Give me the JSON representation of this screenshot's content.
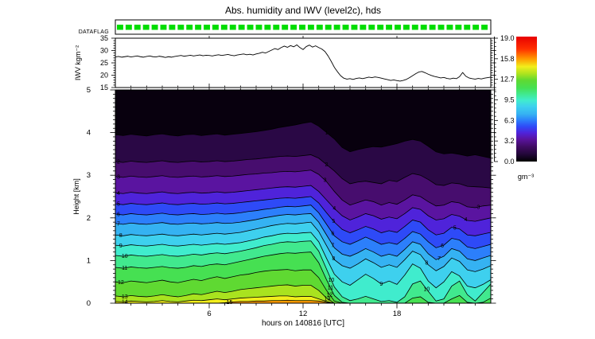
{
  "title": "Abs. humidity and IWV (level2c), hds",
  "dataflag": {
    "label": "DATAFLAG",
    "flag_count": 43,
    "flag_color": "#00dd00",
    "flags_all_green": true
  },
  "xaxis": {
    "label": "hours on 140816 [UTC]",
    "range": [
      0,
      24
    ],
    "major_ticks": [
      6,
      12,
      18
    ]
  },
  "colorbar": {
    "unit": "gm⁻³",
    "range": [
      0,
      19
    ],
    "tick_labels": [
      "19.0",
      "15.8",
      "12.7",
      "9.5",
      "6.3",
      "3.2",
      "0.0"
    ],
    "gradient": [
      [
        0,
        "#000000"
      ],
      [
        0.06,
        "#23073a"
      ],
      [
        0.12,
        "#400c64"
      ],
      [
        0.18,
        "#5a14a0"
      ],
      [
        0.23,
        "#4f23da"
      ],
      [
        0.28,
        "#2e4af7"
      ],
      [
        0.33,
        "#2c7ffb"
      ],
      [
        0.38,
        "#35b2f2"
      ],
      [
        0.44,
        "#3ed0ee"
      ],
      [
        0.49,
        "#40eccd"
      ],
      [
        0.54,
        "#41e98e"
      ],
      [
        0.59,
        "#46e052"
      ],
      [
        0.65,
        "#5fd932"
      ],
      [
        0.7,
        "#a9e31f"
      ],
      [
        0.76,
        "#f2ee1c"
      ],
      [
        0.82,
        "#ff9c00"
      ],
      [
        0.9,
        "#ff3000"
      ],
      [
        1,
        "#e80000"
      ]
    ]
  },
  "chart_data": [
    {
      "type": "line",
      "name": "IWV time series",
      "ylabel": "IWV kgm⁻²",
      "ylim": [
        15,
        35
      ],
      "xlim": [
        0,
        24
      ],
      "y_major_ticks": [
        15,
        20,
        25,
        30,
        35
      ],
      "y_minor_step": 1,
      "t0": 0,
      "dt": 0.2,
      "values": [
        27.4,
        27.6,
        27.3,
        27.5,
        27.7,
        27.4,
        27.6,
        27.8,
        27.5,
        27.3,
        27.6,
        27.8,
        27.5,
        27.4,
        27.7,
        27.5,
        27.2,
        27.5,
        27.3,
        27.6,
        27.8,
        28.0,
        27.7,
        27.9,
        28.1,
        27.8,
        28.0,
        28.2,
        27.9,
        28.1,
        28.0,
        27.8,
        28.1,
        28.3,
        28.0,
        28.2,
        28.4,
        28.1,
        27.9,
        28.2,
        28.4,
        28.6,
        28.3,
        28.5,
        28.2,
        28.6,
        28.9,
        29.3,
        29.0,
        29.6,
        30.2,
        30.8,
        30.4,
        31.2,
        31.8,
        31.3,
        32.0,
        31.5,
        32.3,
        31.2,
        30.4,
        31.6,
        32.2,
        31.4,
        31.9,
        31.2,
        30.6,
        29.6,
        27.8,
        25.6,
        23.2,
        21.4,
        19.8,
        18.8,
        18.4,
        18.6,
        18.3,
        18.7,
        18.9,
        18.6,
        18.9,
        19.2,
        19.0,
        19.3,
        19.1,
        18.8,
        18.5,
        18.2,
        17.9,
        18.1,
        17.8,
        17.6,
        17.9,
        18.3,
        19.0,
        19.8,
        20.6,
        21.3,
        21.5,
        21.0,
        20.4,
        19.9,
        19.5,
        19.2,
        18.9,
        19.1,
        18.7,
        18.5,
        18.8,
        18.6,
        19.4,
        21.1,
        19.6,
        18.9,
        18.6,
        18.4,
        18.7,
        18.5,
        18.8,
        19.0,
        19.2
      ]
    },
    {
      "type": "contour",
      "name": "Absolute humidity (g/m3) vs height and time",
      "ylabel": "Height [km]",
      "ylim": [
        0,
        5
      ],
      "xlim": [
        0,
        24
      ],
      "y_major_ticks": [
        0,
        1,
        2,
        3,
        4,
        5
      ],
      "y_minor_step": 0.1,
      "t0": 0,
      "dt": 0.5,
      "band_colors": [
        "#08000e",
        "#2a0845",
        "#470d6e",
        "#5a14a0",
        "#4f23da",
        "#2e4af7",
        "#2c7ffb",
        "#35b2f2",
        "#3ed0ee",
        "#40eccd",
        "#41e98e",
        "#46e052",
        "#5fd932",
        "#a9e31f",
        "#f2ee1c",
        "#ff9c00"
      ],
      "levels": [
        {
          "value": 1,
          "heights": [
            3.95,
            3.93,
            3.96,
            3.94,
            3.92,
            3.95,
            3.97,
            3.94,
            3.92,
            3.95,
            3.96,
            3.93,
            3.95,
            3.97,
            3.94,
            3.96,
            3.98,
            4.0,
            4.02,
            4.05,
            4.08,
            4.12,
            4.15,
            4.18,
            4.22,
            4.25,
            4.15,
            4.0,
            3.85,
            3.65,
            3.55,
            3.6,
            3.64,
            3.67,
            3.66,
            3.7,
            3.74,
            3.8,
            3.84,
            3.8,
            3.68,
            3.55,
            3.5,
            3.52,
            3.49,
            3.45,
            3.48,
            3.44,
            3.4
          ]
        },
        {
          "value": 2,
          "heights": [
            3.32,
            3.3,
            3.33,
            3.31,
            3.3,
            3.32,
            3.34,
            3.31,
            3.3,
            3.32,
            3.33,
            3.31,
            3.32,
            3.34,
            3.32,
            3.33,
            3.35,
            3.37,
            3.38,
            3.4,
            3.42,
            3.44,
            3.45,
            3.44,
            3.46,
            3.48,
            3.4,
            3.25,
            3.1,
            2.92,
            2.8,
            2.84,
            2.86,
            2.83,
            2.8,
            2.88,
            2.85,
            2.95,
            3.04,
            3.0,
            2.9,
            2.78,
            2.76,
            2.82,
            2.8,
            2.74,
            2.73,
            2.72,
            2.7
          ]
        },
        {
          "value": 3,
          "heights": [
            2.97,
            2.95,
            2.98,
            2.96,
            2.95,
            2.97,
            2.99,
            2.96,
            2.95,
            2.97,
            2.98,
            2.96,
            2.97,
            2.99,
            2.97,
            2.98,
            3.0,
            3.02,
            3.03,
            3.05,
            3.06,
            3.08,
            3.09,
            3.08,
            3.1,
            3.12,
            3.02,
            2.85,
            2.62,
            2.42,
            2.3,
            2.36,
            2.42,
            2.38,
            2.3,
            2.36,
            2.32,
            2.42,
            2.54,
            2.5,
            2.38,
            2.28,
            2.3,
            2.38,
            2.35,
            2.26,
            2.24,
            2.28,
            2.3
          ]
        },
        {
          "value": 4,
          "heights": [
            2.59,
            2.57,
            2.6,
            2.58,
            2.57,
            2.59,
            2.61,
            2.58,
            2.57,
            2.59,
            2.6,
            2.58,
            2.59,
            2.61,
            2.59,
            2.6,
            2.62,
            2.64,
            2.66,
            2.68,
            2.7,
            2.72,
            2.73,
            2.72,
            2.74,
            2.76,
            2.62,
            2.42,
            2.22,
            2.05,
            1.95,
            2.02,
            2.1,
            2.05,
            1.97,
            2.02,
            1.98,
            2.1,
            2.24,
            2.2,
            2.05,
            1.95,
            1.98,
            2.08,
            2.04,
            1.94,
            1.92,
            1.96,
            2.0
          ]
        },
        {
          "value": 5,
          "heights": [
            2.33,
            2.31,
            2.34,
            2.32,
            2.31,
            2.33,
            2.35,
            2.32,
            2.31,
            2.33,
            2.34,
            2.32,
            2.33,
            2.35,
            2.33,
            2.34,
            2.36,
            2.38,
            2.4,
            2.42,
            2.44,
            2.46,
            2.47,
            2.46,
            2.48,
            2.5,
            2.35,
            2.12,
            1.9,
            1.73,
            1.65,
            1.72,
            1.8,
            1.74,
            1.65,
            1.7,
            1.66,
            1.8,
            1.95,
            1.9,
            1.72,
            1.6,
            1.64,
            1.78,
            1.74,
            1.6,
            1.58,
            1.62,
            1.66
          ]
        },
        {
          "value": 6,
          "heights": [
            2.09,
            2.07,
            2.1,
            2.08,
            2.07,
            2.09,
            2.11,
            2.08,
            2.07,
            2.09,
            2.1,
            2.08,
            2.09,
            2.11,
            2.09,
            2.1,
            2.12,
            2.15,
            2.17,
            2.2,
            2.22,
            2.25,
            2.27,
            2.26,
            2.28,
            2.3,
            2.12,
            1.85,
            1.58,
            1.44,
            1.38,
            1.46,
            1.55,
            1.47,
            1.38,
            1.42,
            1.38,
            1.52,
            1.68,
            1.62,
            1.44,
            1.3,
            1.36,
            1.52,
            1.48,
            1.32,
            1.28,
            1.33,
            1.38
          ]
        },
        {
          "value": 7,
          "heights": [
            1.87,
            1.85,
            1.88,
            1.86,
            1.85,
            1.87,
            1.89,
            1.86,
            1.85,
            1.87,
            1.88,
            1.86,
            1.87,
            1.89,
            1.87,
            1.88,
            1.9,
            1.93,
            1.96,
            2.0,
            2.03,
            2.06,
            2.08,
            2.07,
            2.09,
            2.1,
            1.9,
            1.6,
            1.3,
            1.15,
            1.1,
            1.18,
            1.28,
            1.2,
            1.1,
            1.15,
            1.1,
            1.26,
            1.44,
            1.38,
            1.16,
            1.02,
            1.1,
            1.28,
            1.22,
            1.04,
            1.0,
            1.06,
            1.12
          ]
        },
        {
          "value": 8,
          "heights": [
            1.6,
            1.58,
            1.61,
            1.59,
            1.58,
            1.6,
            1.62,
            1.59,
            1.58,
            1.6,
            1.62,
            1.6,
            1.62,
            1.64,
            1.62,
            1.64,
            1.66,
            1.7,
            1.74,
            1.78,
            1.82,
            1.85,
            1.87,
            1.86,
            1.88,
            1.9,
            1.68,
            1.35,
            1.02,
            0.88,
            0.82,
            0.92,
            1.04,
            0.95,
            0.84,
            0.9,
            0.84,
            1.02,
            1.22,
            1.14,
            0.9,
            0.76,
            0.86,
            1.06,
            0.98,
            0.78,
            0.74,
            0.8,
            0.88
          ]
        },
        {
          "value": 9,
          "heights": [
            1.36,
            1.34,
            1.37,
            1.35,
            1.34,
            1.36,
            1.38,
            1.35,
            1.34,
            1.36,
            1.38,
            1.36,
            1.38,
            1.4,
            1.38,
            1.4,
            1.42,
            1.46,
            1.5,
            1.55,
            1.58,
            1.62,
            1.64,
            1.63,
            1.65,
            1.66,
            1.44,
            1.05,
            0.68,
            0.5,
            0.42,
            0.55,
            0.68,
            0.58,
            0.45,
            0.52,
            0.44,
            0.66,
            0.92,
            0.82,
            0.52,
            0.36,
            0.5,
            0.74,
            0.64,
            0.4,
            0.36,
            0.44,
            0.55
          ]
        },
        {
          "value": 10,
          "heights": [
            1.12,
            1.1,
            1.13,
            1.11,
            1.1,
            1.12,
            1.14,
            1.11,
            1.1,
            1.12,
            1.15,
            1.13,
            1.16,
            1.18,
            1.16,
            1.19,
            1.22,
            1.26,
            1.3,
            1.35,
            1.38,
            1.42,
            1.44,
            1.43,
            1.45,
            1.46,
            1.22,
            0.8,
            0.38,
            0.15,
            0.06,
            0.1,
            0.16,
            0.1,
            0.04,
            0.06,
            0.02,
            0.15,
            0.45,
            0.52,
            0.28,
            0.05,
            0.1,
            0.4,
            0.52,
            0.2,
            0.05,
            0.25,
            0.45
          ]
        },
        {
          "value": 11,
          "heights": [
            0.84,
            0.82,
            0.85,
            0.83,
            0.82,
            0.84,
            0.86,
            0.83,
            0.82,
            0.84,
            0.88,
            0.86,
            0.9,
            0.92,
            0.9,
            0.94,
            0.98,
            1.02,
            1.06,
            1.1,
            1.13,
            1.16,
            1.18,
            1.17,
            1.19,
            1.2,
            0.95,
            0.55,
            0.18,
            0.02,
            0,
            0,
            0,
            0,
            0,
            0,
            0,
            0,
            0.12,
            0.15,
            0.02,
            0,
            0,
            0.1,
            0.18,
            0.02,
            0,
            0.02,
            0.12
          ]
        },
        {
          "value": 12,
          "heights": [
            0.5,
            0.48,
            0.52,
            0.5,
            0.48,
            0.51,
            0.54,
            0.5,
            0.48,
            0.52,
            0.56,
            0.53,
            0.58,
            0.62,
            0.58,
            0.62,
            0.66,
            0.68,
            0.72,
            0.75,
            0.77,
            0.78,
            0.79,
            0.76,
            0.78,
            0.78,
            0.6,
            0.3,
            0.05,
            0,
            0,
            0,
            0,
            0,
            0,
            0,
            0,
            0,
            0,
            0,
            0,
            0,
            0,
            0,
            0,
            0,
            0,
            0,
            0
          ]
        },
        {
          "value": 13,
          "heights": [
            0.17,
            0.15,
            0.18,
            0.16,
            0.15,
            0.17,
            0.2,
            0.17,
            0.15,
            0.18,
            0.22,
            0.2,
            0.24,
            0.28,
            0.25,
            0.28,
            0.32,
            0.34,
            0.36,
            0.38,
            0.4,
            0.42,
            0.43,
            0.4,
            0.42,
            0.42,
            0.3,
            0.12,
            0,
            0,
            0,
            0,
            0,
            0,
            0,
            0,
            0,
            0,
            0,
            0,
            0,
            0,
            0,
            0,
            0,
            0,
            0,
            0,
            0
          ]
        },
        {
          "value": 14,
          "heights": [
            0.04,
            0.03,
            0.05,
            0.04,
            0.03,
            0.04,
            0.06,
            0.04,
            0.03,
            0.05,
            0.07,
            0.06,
            0.08,
            0.1,
            0.08,
            0.1,
            0.12,
            0.13,
            0.14,
            0.15,
            0.16,
            0.17,
            0.17,
            0.15,
            0.16,
            0.16,
            0.1,
            0.04,
            0,
            0,
            0,
            0,
            0,
            0,
            0,
            0,
            0,
            0,
            0,
            0,
            0,
            0,
            0,
            0,
            0,
            0,
            0,
            0,
            0
          ]
        },
        {
          "value": 15,
          "heights": [
            0,
            0,
            0,
            0,
            0,
            0,
            0,
            0,
            0,
            0,
            0,
            0,
            0,
            0,
            0.01,
            0.03,
            0.04,
            0.04,
            0.05,
            0.05,
            0.06,
            0.06,
            0.07,
            0.06,
            0.06,
            0.06,
            0.05,
            0.02,
            0,
            0,
            0,
            0,
            0,
            0,
            0,
            0,
            0,
            0,
            0,
            0,
            0,
            0,
            0,
            0,
            0,
            0,
            0,
            0,
            0
          ]
        }
      ],
      "labels": [
        [
          2,
          0.2
        ],
        [
          3,
          0.2
        ],
        [
          4,
          0.2
        ],
        [
          5,
          0.2
        ],
        [
          6,
          0.2
        ],
        [
          7,
          0.2
        ],
        [
          8,
          0.35
        ],
        [
          9,
          0.35
        ],
        [
          10,
          0.6
        ],
        [
          11,
          0.6
        ],
        [
          12,
          0.35
        ],
        [
          13,
          0.6
        ],
        [
          14,
          0.6
        ],
        [
          15,
          7.3
        ],
        [
          1,
          13.5
        ],
        [
          2,
          13.5
        ],
        [
          3,
          13.4
        ],
        [
          4,
          14.0
        ],
        [
          5,
          13.95
        ],
        [
          6,
          13.9
        ],
        [
          7,
          13.9
        ],
        [
          8,
          13.95
        ],
        [
          10,
          13.8
        ],
        [
          11,
          13.75
        ],
        [
          12,
          13.7
        ],
        [
          13,
          13.55
        ],
        [
          3,
          23.2
        ],
        [
          4,
          22.4
        ],
        [
          5,
          21.7
        ],
        [
          6,
          20.9
        ],
        [
          7,
          20.7
        ],
        [
          8,
          19.9
        ],
        [
          9,
          17.0
        ],
        [
          10,
          19.9
        ]
      ]
    }
  ]
}
